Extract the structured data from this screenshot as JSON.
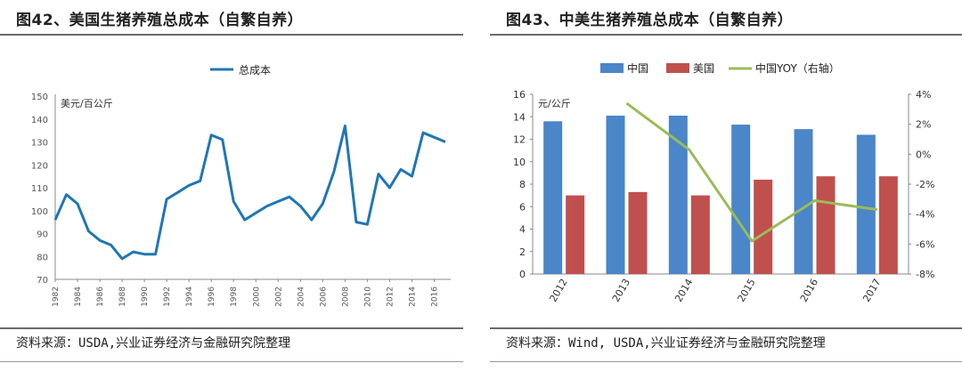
{
  "left": {
    "title": "图42、美国生猪养殖总成本（自繁自养）",
    "source": "资料来源：USDA,兴业证券经济与金融研究院整理",
    "line_color": "#1f77b4"
  },
  "right": {
    "title": "图43、中美生猪养殖总成本（自繁自养）",
    "source": "资料来源：Wind, USDA,兴业证券经济与金融研究院整理",
    "colors": {
      "china": "#4a86c8",
      "usa": "#c0504d",
      "yoy": "#9bbb59"
    }
  },
  "chart_data": [
    {
      "type": "line",
      "title": "",
      "ylabel": "美元/百公斤",
      "ylim": [
        70,
        150
      ],
      "yticks": [
        "70",
        "80",
        "90",
        "100",
        "110",
        "120",
        "130",
        "140",
        "150"
      ],
      "xticks": [
        "1982",
        "1984",
        "1986",
        "1988",
        "1990",
        "1992",
        "1994",
        "1996",
        "1998",
        "2000",
        "2002",
        "2004",
        "2006",
        "2008",
        "2010",
        "2012",
        "2014",
        "2016"
      ],
      "x": [
        1982,
        1983,
        1984,
        1985,
        1986,
        1987,
        1988,
        1989,
        1990,
        1991,
        1992,
        1993,
        1994,
        1995,
        1996,
        1997,
        1998,
        1999,
        2000,
        2001,
        2002,
        2003,
        2004,
        2005,
        2006,
        2007,
        2008,
        2009,
        2010,
        2011,
        2012,
        2013,
        2014,
        2015,
        2016,
        2017
      ],
      "series": [
        {
          "name": "总成本",
          "values": [
            96,
            107,
            103,
            91,
            87,
            85,
            79,
            82,
            81,
            81,
            105,
            108,
            111,
            113,
            133,
            131,
            104,
            96,
            99,
            102,
            104,
            106,
            102,
            96,
            103,
            117,
            137,
            95,
            94,
            116,
            110,
            118,
            115,
            134,
            132,
            130
          ]
        }
      ],
      "legend": "top-center",
      "grid": false
    },
    {
      "type": "bar",
      "title": "",
      "ylabel": "元/公斤",
      "ylim": [
        0,
        16
      ],
      "yticks": [
        "0",
        "2",
        "4",
        "6",
        "8",
        "10",
        "12",
        "14",
        "16"
      ],
      "y2lim": [
        -8,
        4
      ],
      "y2ticks": [
        "-8%",
        "-6%",
        "-4%",
        "-2%",
        "0%",
        "2%",
        "4%"
      ],
      "categories": [
        "2012",
        "2013",
        "2014",
        "2015",
        "2016",
        "2017"
      ],
      "series": [
        {
          "name": "中国",
          "values": [
            13.6,
            14.1,
            14.1,
            13.3,
            12.9,
            12.4
          ]
        },
        {
          "name": "美国",
          "values": [
            7.0,
            7.3,
            7.0,
            8.4,
            8.7,
            8.7
          ]
        },
        {
          "name": "中国YOY（右轴）",
          "type": "line",
          "axis": "right",
          "values": [
            null,
            3.4,
            0.3,
            -5.8,
            -3.1,
            -3.7
          ]
        }
      ],
      "legend": "top-center",
      "grid": false
    }
  ]
}
